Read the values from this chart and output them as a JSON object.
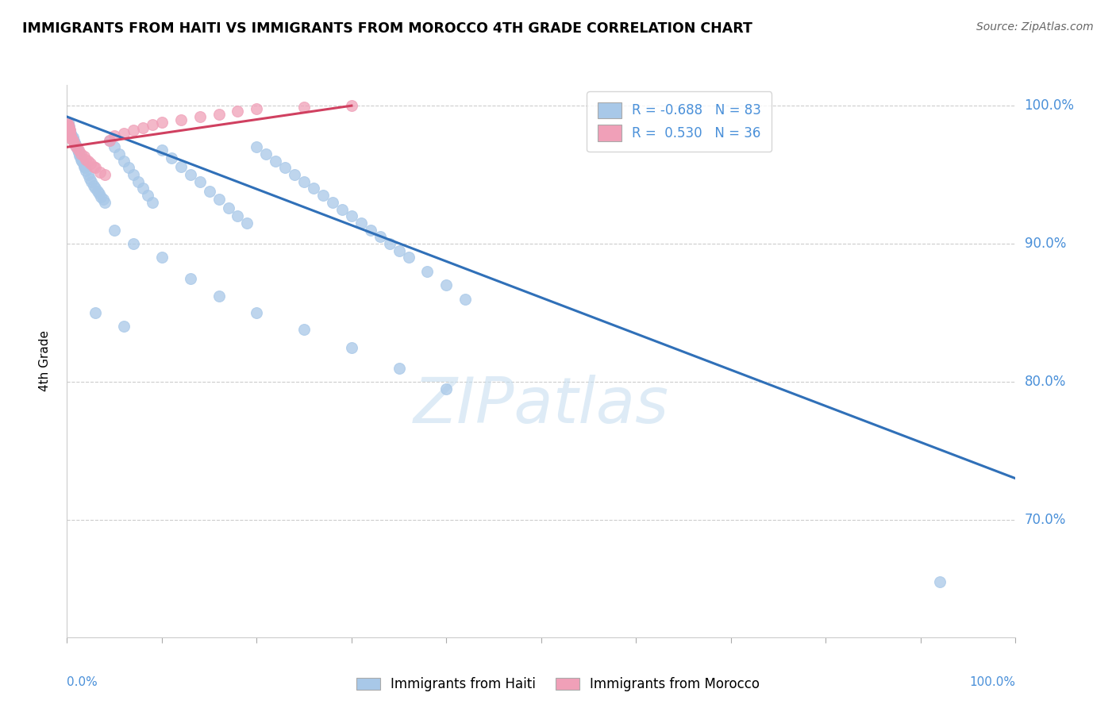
{
  "title": "IMMIGRANTS FROM HAITI VS IMMIGRANTS FROM MOROCCO 4TH GRADE CORRELATION CHART",
  "source": "Source: ZipAtlas.com",
  "ylabel": "4th Grade",
  "xlim": [
    0.0,
    1.0
  ],
  "ylim": [
    0.615,
    1.015
  ],
  "yticks": [
    0.7,
    0.8,
    0.9,
    1.0
  ],
  "ytick_labels": [
    "70.0%",
    "80.0%",
    "90.0%",
    "100.0%"
  ],
  "haiti_color": "#a8c8e8",
  "morocco_color": "#f0a0b8",
  "haiti_edge_color": "#88aed0",
  "morocco_edge_color": "#d888a0",
  "haiti_line_color": "#3070b8",
  "morocco_line_color": "#d04060",
  "legend_haiti_R": "-0.688",
  "legend_haiti_N": "83",
  "legend_morocco_R": "0.530",
  "legend_morocco_N": "36",
  "watermark_text": "ZIPatlas",
  "haiti_scatter_x": [
    0.001,
    0.002,
    0.003,
    0.004,
    0.005,
    0.006,
    0.007,
    0.008,
    0.009,
    0.01,
    0.011,
    0.012,
    0.013,
    0.014,
    0.015,
    0.016,
    0.017,
    0.018,
    0.019,
    0.02,
    0.022,
    0.024,
    0.026,
    0.028,
    0.03,
    0.032,
    0.034,
    0.036,
    0.038,
    0.04,
    0.045,
    0.05,
    0.055,
    0.06,
    0.065,
    0.07,
    0.075,
    0.08,
    0.085,
    0.09,
    0.1,
    0.11,
    0.12,
    0.13,
    0.14,
    0.15,
    0.16,
    0.17,
    0.18,
    0.19,
    0.2,
    0.21,
    0.22,
    0.23,
    0.24,
    0.25,
    0.26,
    0.27,
    0.28,
    0.29,
    0.3,
    0.31,
    0.32,
    0.33,
    0.34,
    0.35,
    0.36,
    0.38,
    0.4,
    0.42,
    0.05,
    0.07,
    0.1,
    0.13,
    0.16,
    0.2,
    0.25,
    0.3,
    0.35,
    0.4,
    0.03,
    0.06,
    0.92
  ],
  "haiti_scatter_y": [
    0.988,
    0.985,
    0.982,
    0.98,
    0.978,
    0.977,
    0.975,
    0.973,
    0.972,
    0.97,
    0.968,
    0.966,
    0.964,
    0.963,
    0.961,
    0.96,
    0.958,
    0.956,
    0.955,
    0.953,
    0.95,
    0.947,
    0.945,
    0.942,
    0.94,
    0.938,
    0.936,
    0.934,
    0.932,
    0.93,
    0.975,
    0.97,
    0.965,
    0.96,
    0.955,
    0.95,
    0.945,
    0.94,
    0.935,
    0.93,
    0.968,
    0.962,
    0.956,
    0.95,
    0.945,
    0.938,
    0.932,
    0.926,
    0.92,
    0.915,
    0.97,
    0.965,
    0.96,
    0.955,
    0.95,
    0.945,
    0.94,
    0.935,
    0.93,
    0.925,
    0.92,
    0.915,
    0.91,
    0.905,
    0.9,
    0.895,
    0.89,
    0.88,
    0.87,
    0.86,
    0.91,
    0.9,
    0.89,
    0.875,
    0.862,
    0.85,
    0.838,
    0.825,
    0.81,
    0.795,
    0.85,
    0.84,
    0.655
  ],
  "morocco_scatter_x": [
    0.001,
    0.002,
    0.003,
    0.004,
    0.005,
    0.006,
    0.008,
    0.01,
    0.012,
    0.015,
    0.018,
    0.02,
    0.022,
    0.025,
    0.028,
    0.03,
    0.035,
    0.04,
    0.045,
    0.05,
    0.06,
    0.07,
    0.08,
    0.09,
    0.1,
    0.12,
    0.14,
    0.16,
    0.18,
    0.2,
    0.0,
    0.001,
    0.002,
    0.003,
    0.25,
    0.3
  ],
  "morocco_scatter_y": [
    0.985,
    0.982,
    0.98,
    0.978,
    0.976,
    0.975,
    0.972,
    0.97,
    0.968,
    0.965,
    0.963,
    0.961,
    0.96,
    0.958,
    0.956,
    0.955,
    0.952,
    0.95,
    0.975,
    0.978,
    0.98,
    0.982,
    0.984,
    0.986,
    0.988,
    0.99,
    0.992,
    0.994,
    0.996,
    0.998,
    0.988,
    0.986,
    0.984,
    0.982,
    0.999,
    1.0
  ],
  "haiti_trendline_x": [
    0.0,
    1.0
  ],
  "haiti_trendline_y": [
    0.992,
    0.73
  ],
  "morocco_trendline_x": [
    0.0,
    0.3
  ],
  "morocco_trendline_y": [
    0.97,
    1.0
  ]
}
